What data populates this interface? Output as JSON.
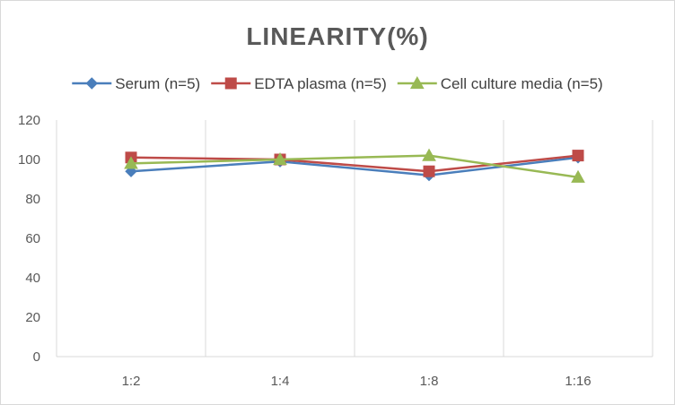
{
  "chart_data": {
    "type": "line",
    "title": "LINEARITY(%)",
    "categories": [
      "1:2",
      "1:4",
      "1:8",
      "1:16"
    ],
    "ylim": [
      0,
      120
    ],
    "yticks": [
      0,
      20,
      40,
      60,
      80,
      100,
      120
    ],
    "grid": "vertical",
    "legend_position": "top",
    "series": [
      {
        "name": "Serum (n=5)",
        "values": [
          94,
          99,
          92,
          101
        ],
        "color": "#4a7ebb",
        "marker": "diamond"
      },
      {
        "name": "EDTA plasma (n=5)",
        "values": [
          101,
          100,
          94,
          102
        ],
        "color": "#be4b48",
        "marker": "square"
      },
      {
        "name": "Cell culture media (n=5)",
        "values": [
          98,
          100,
          102,
          91
        ],
        "color": "#98b954",
        "marker": "triangle"
      }
    ]
  }
}
